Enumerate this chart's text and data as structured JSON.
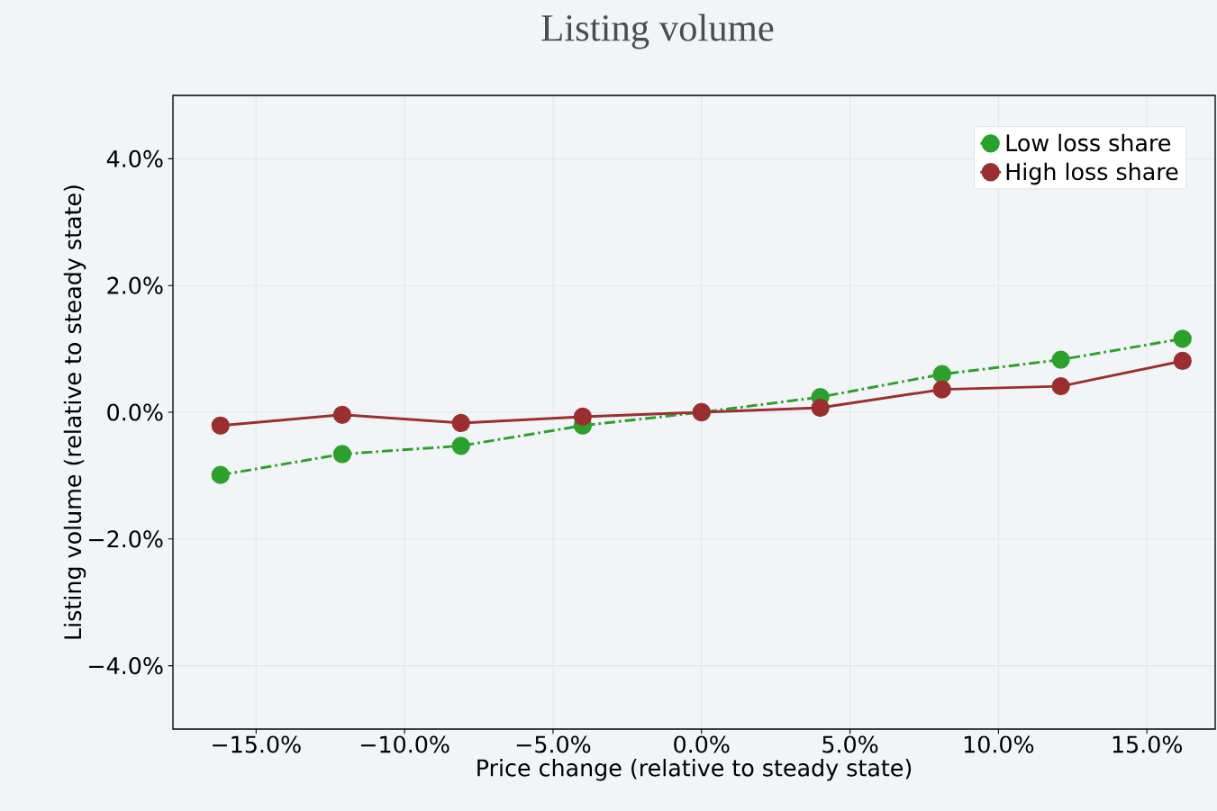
{
  "chart_data": {
    "type": "line",
    "title": "Listing volume",
    "xlabel": "Price change (relative to steady state)",
    "ylabel": "Listing volume (relative to steady state)",
    "x": [
      -16.2,
      -12.1,
      -8.1,
      -4.0,
      0,
      4.0,
      8.1,
      12.1,
      16.2
    ],
    "series": [
      {
        "name": "Low loss share",
        "color": "#2ca02c",
        "line_style": "dashed",
        "values": [
          -0.99,
          -0.66,
          -0.53,
          -0.21,
          0,
          0.24,
          0.6,
          0.83,
          1.16
        ]
      },
      {
        "name": "High loss share",
        "color": "#9b2f2f",
        "line_style": "solid",
        "values": [
          -0.21,
          -0.04,
          -0.17,
          -0.07,
          0,
          0.07,
          0.36,
          0.41,
          0.81
        ]
      }
    ],
    "xlim": [
      -17.8,
      17.3
    ],
    "ylim": [
      -5,
      5
    ],
    "xticks": [
      {
        "value": -15,
        "label": "−15.0%"
      },
      {
        "value": -10,
        "label": "−10.0%"
      },
      {
        "value": -5,
        "label": "−5.0%"
      },
      {
        "value": 0,
        "label": "0.0%"
      },
      {
        "value": 5,
        "label": "5.0%"
      },
      {
        "value": 10,
        "label": "10.0%"
      },
      {
        "value": 15,
        "label": "15.0%"
      }
    ],
    "yticks": [
      {
        "value": -4,
        "label": "−4.0%"
      },
      {
        "value": -2,
        "label": "−2.0%"
      },
      {
        "value": 0,
        "label": "0.0%"
      },
      {
        "value": 2,
        "label": "2.0%"
      },
      {
        "value": 4,
        "label": "4.0%"
      }
    ],
    "grid": true,
    "legend": "top right",
    "marker": "circle"
  }
}
